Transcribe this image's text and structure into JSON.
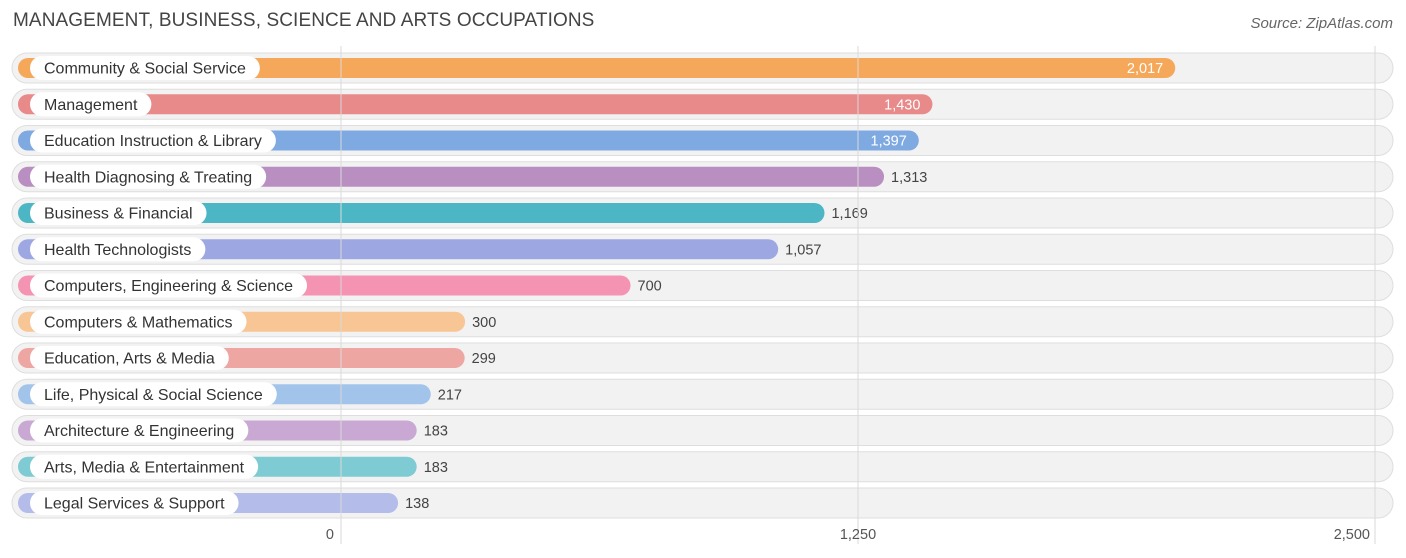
{
  "header": {
    "title": "MANAGEMENT, BUSINESS, SCIENCE AND ARTS OCCUPATIONS",
    "source": "Source: ZipAtlas.com"
  },
  "chart_data": {
    "type": "bar",
    "orientation": "horizontal",
    "title": "MANAGEMENT, BUSINESS, SCIENCE AND ARTS OCCUPATIONS",
    "xlabel": "",
    "ylabel": "",
    "xlim": [
      0,
      2500
    ],
    "ticks": [
      {
        "value": 0,
        "label": "0"
      },
      {
        "value": 1250,
        "label": "1,250"
      },
      {
        "value": 2500,
        "label": "2,500"
      }
    ],
    "grid": true,
    "categories": [
      "Community & Social Service",
      "Management",
      "Education Instruction & Library",
      "Health Diagnosing & Treating",
      "Business & Financial",
      "Health Technologists",
      "Computers, Engineering & Science",
      "Computers & Mathematics",
      "Education, Arts & Media",
      "Life, Physical & Social Science",
      "Architecture & Engineering",
      "Arts, Media & Entertainment",
      "Legal Services & Support"
    ],
    "values": [
      2017,
      1430,
      1397,
      1313,
      1169,
      1057,
      700,
      300,
      299,
      217,
      183,
      183,
      138
    ],
    "value_labels": [
      "2,017",
      "1,430",
      "1,397",
      "1,313",
      "1,169",
      "1,057",
      "700",
      "300",
      "299",
      "217",
      "183",
      "183",
      "138"
    ],
    "colors": [
      "#f6a85a",
      "#e8898a",
      "#7ea9e1",
      "#b98fc2",
      "#4db6c4",
      "#9da8e3",
      "#f593b2",
      "#f8c594",
      "#eea6a3",
      "#a3c4ea",
      "#c9a9d3",
      "#7ecbd3",
      "#b4bdea"
    ]
  }
}
